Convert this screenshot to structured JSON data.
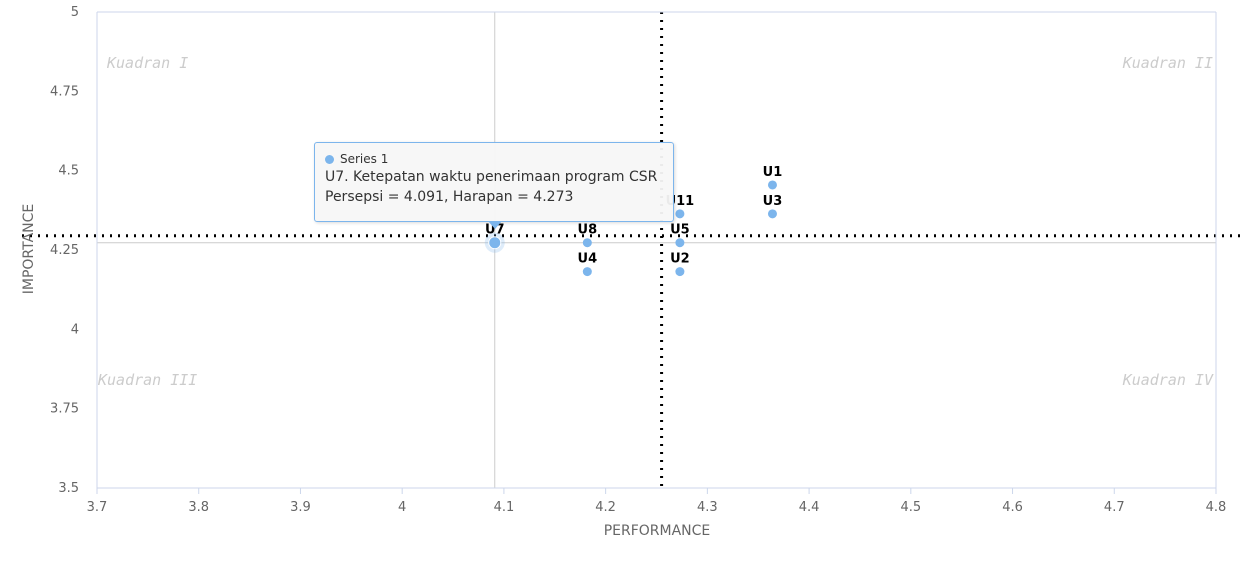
{
  "chart_data": {
    "type": "scatter",
    "title": "",
    "xlabel": "PERFORMANCE",
    "ylabel": "IMPORTANCE",
    "xlim": [
      3.7,
      4.8
    ],
    "ylim": [
      3.5,
      5
    ],
    "x_ticks": [
      "3.7",
      "3.8",
      "3.9",
      "4",
      "4.1",
      "4.2",
      "4.3",
      "4.4",
      "4.5",
      "4.6",
      "4.7",
      "4.8"
    ],
    "y_ticks": [
      "3.5",
      "3.75",
      "4",
      "4.25",
      "4.5",
      "4.75",
      "5"
    ],
    "series": [
      {
        "name": "Series 1",
        "color": "#7cb5ec",
        "points": [
          {
            "label": "U1",
            "x": 4.364,
            "y": 4.455
          },
          {
            "label": "U3",
            "x": 4.364,
            "y": 4.364
          },
          {
            "label": "U11",
            "x": 4.273,
            "y": 4.364
          },
          {
            "label": "U5",
            "x": 4.273,
            "y": 4.273
          },
          {
            "label": "U2",
            "x": 4.273,
            "y": 4.182
          },
          {
            "label": "U8",
            "x": 4.182,
            "y": 4.273
          },
          {
            "label": "U4",
            "x": 4.182,
            "y": 4.182
          },
          {
            "label": "U7",
            "x": 4.091,
            "y": 4.273
          }
        ]
      }
    ],
    "reference_lines": {
      "x": 4.255,
      "y": 4.295,
      "style": "dotted"
    },
    "crosshair": {
      "x": 4.091,
      "y": 4.273
    },
    "quadrants": {
      "top_left": "Kuadran I",
      "top_right": "Kuadran II",
      "bottom_left": "Kuadran III",
      "bottom_right": "Kuadran IV"
    },
    "grid": false,
    "legend": "none"
  },
  "tooltip": {
    "series": "Series 1",
    "line1": "U7. Ketepatan waktu penerimaan program CSR",
    "line2": "Persepsi = 4.091, Harapan = 4.273"
  }
}
